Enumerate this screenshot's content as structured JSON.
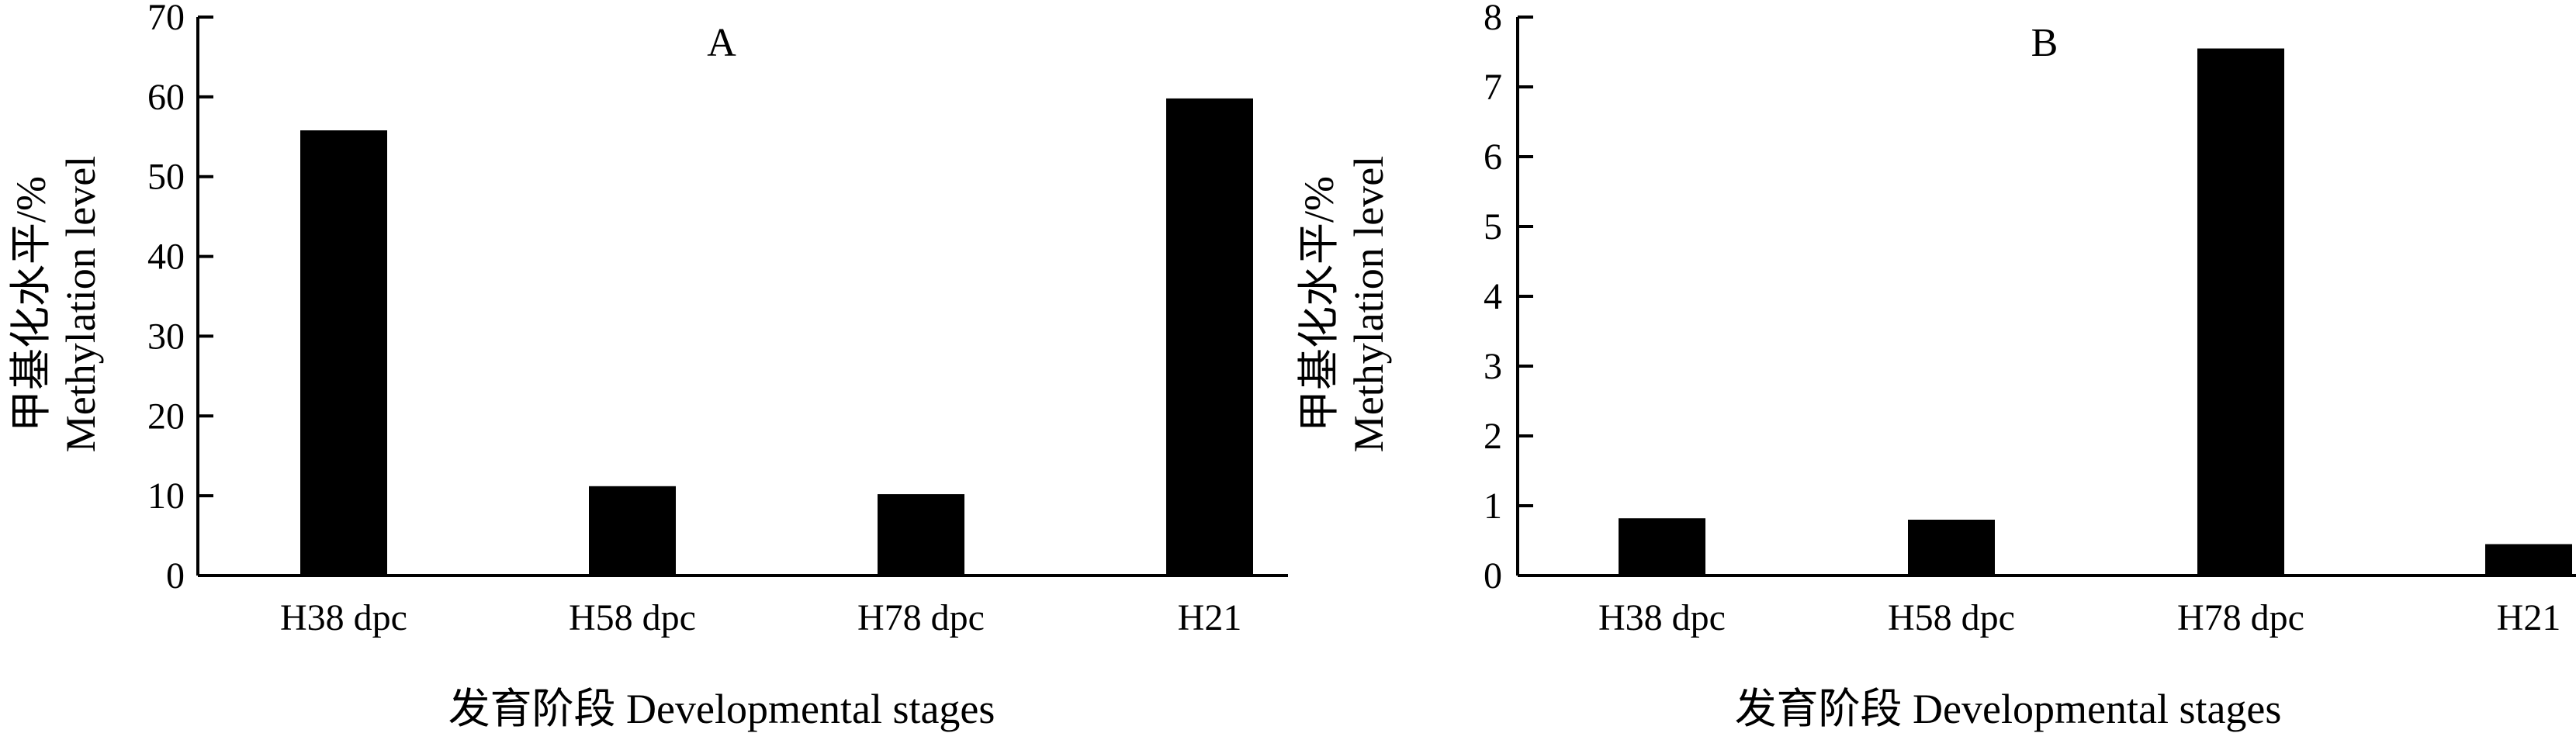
{
  "chart_data": [
    {
      "type": "bar",
      "title": "A",
      "categories": [
        "H38 dpc",
        "H58 dpc",
        "H78 dpc",
        "H21"
      ],
      "values": [
        55.8,
        11.2,
        10.2,
        59.8
      ],
      "ylabel": "甲基化水平/% Methylation level",
      "ylabel_lines": [
        "甲基化水平/%",
        "Methylation level"
      ],
      "xlabel": "发育阶段 Developmental stages",
      "ylim": [
        0,
        70
      ],
      "yticks": [
        0,
        10,
        20,
        30,
        40,
        50,
        60,
        70
      ],
      "bar_color": "#000000",
      "grid": false,
      "legend": "none"
    },
    {
      "type": "bar",
      "title": "B",
      "categories": [
        "H38 dpc",
        "H58 dpc",
        "H78 dpc",
        "H21"
      ],
      "values": [
        0.82,
        0.8,
        7.55,
        0.45
      ],
      "ylabel": "甲基化水平/% Methylation level",
      "ylabel_lines": [
        "甲基化水平/%",
        "Methylation level"
      ],
      "xlabel": "发育阶段 Developmental stages",
      "ylim": [
        0,
        8
      ],
      "yticks": [
        0,
        1,
        2,
        3,
        4,
        5,
        6,
        7,
        8
      ],
      "bar_color": "#000000",
      "grid": false,
      "legend": "none"
    }
  ]
}
